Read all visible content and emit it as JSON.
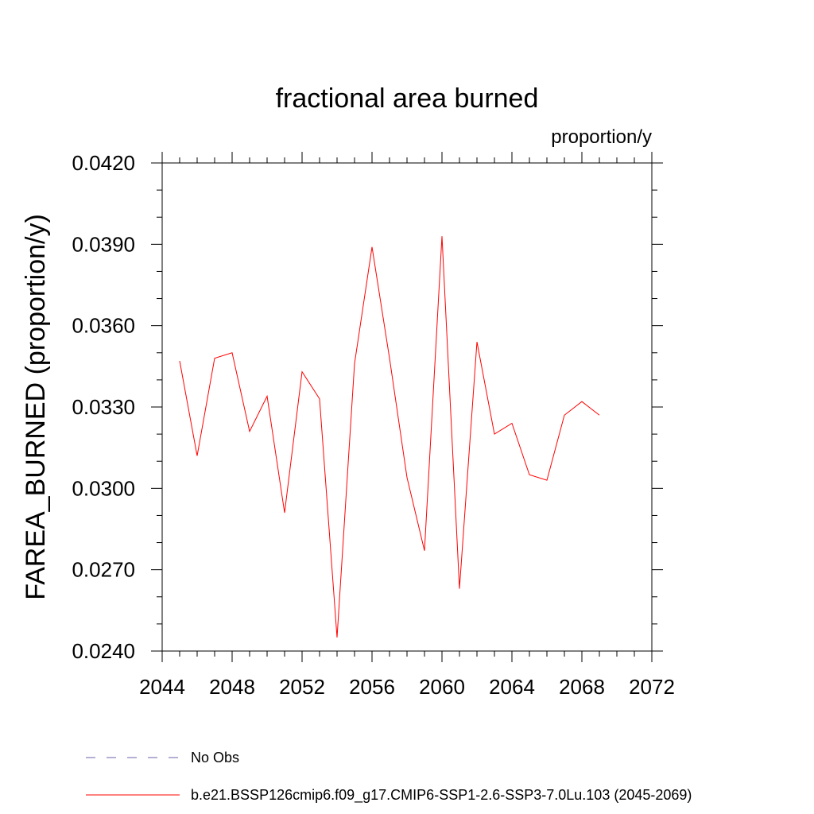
{
  "chart_data": {
    "type": "line",
    "title": "fractional area burned",
    "units_label": "proportion/y",
    "xlabel": "",
    "ylabel": "FAREA_BURNED  (proportion/y)",
    "xlim": [
      2044,
      2072
    ],
    "ylim": [
      0.024,
      0.042
    ],
    "x_ticks": [
      2044,
      2048,
      2052,
      2056,
      2060,
      2064,
      2068,
      2072
    ],
    "x_tick_labels": [
      "2044",
      "2048",
      "2052",
      "2056",
      "2060",
      "2064",
      "2068",
      "2072"
    ],
    "y_ticks": [
      0.024,
      0.027,
      0.03,
      0.033,
      0.036,
      0.039,
      0.042
    ],
    "y_tick_labels": [
      "0.0240",
      "0.0270",
      "0.0300",
      "0.0330",
      "0.0360",
      "0.0390",
      "0.0420"
    ],
    "grid": false,
    "legend_position": "bottom",
    "series": [
      {
        "name": "b.e21.BSSP126cmip6.f09_g17.CMIP6-SSP1-2.6-SSP3-7.0Lu.103 (2045-2069)",
        "color": "#ff0000",
        "style": "solid",
        "x": [
          2045,
          2046,
          2047,
          2048,
          2049,
          2050,
          2051,
          2052,
          2053,
          2054,
          2055,
          2056,
          2057,
          2058,
          2059,
          2060,
          2061,
          2062,
          2063,
          2064,
          2065,
          2066,
          2067,
          2068,
          2069
        ],
        "y": [
          0.0347,
          0.0312,
          0.0348,
          0.035,
          0.0321,
          0.0334,
          0.0291,
          0.0343,
          0.0333,
          0.0245,
          0.0346,
          0.0389,
          0.0348,
          0.0304,
          0.0277,
          0.0393,
          0.0263,
          0.0354,
          0.032,
          0.0324,
          0.0305,
          0.0303,
          0.0327,
          0.0332,
          0.0327
        ]
      }
    ],
    "legend": [
      {
        "label": "No Obs",
        "color": "#6b5fa8",
        "style": "dashed"
      },
      {
        "label": "b.e21.BSSP126cmip6.f09_g17.CMIP6-SSP1-2.6-SSP3-7.0Lu.103 (2045-2069)",
        "color": "#ff0000",
        "style": "solid"
      }
    ]
  }
}
